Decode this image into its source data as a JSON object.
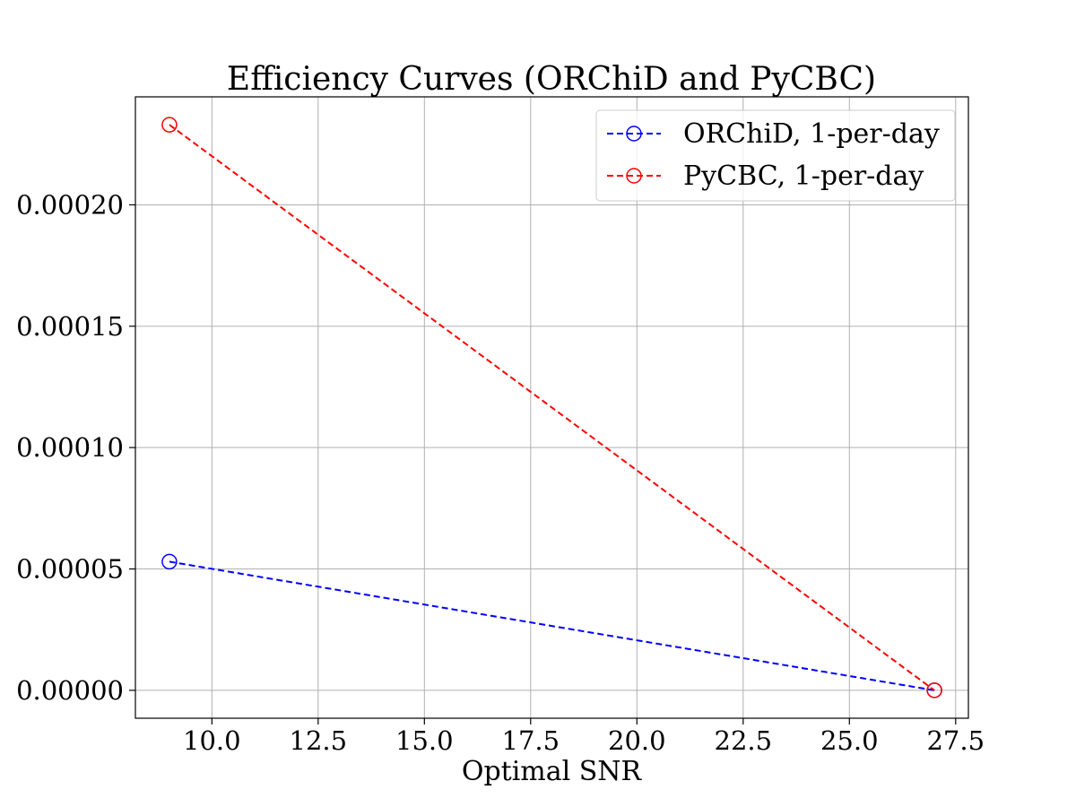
{
  "chart_data": {
    "type": "line",
    "title": "Efficiency Curves (ORChiD and PyCBC)",
    "xlabel": "Optimal SNR",
    "ylabel": "",
    "xlim": [
      8.2,
      27.8
    ],
    "ylim": [
      -1.15e-05,
      0.0002445
    ],
    "x_ticks": [
      10.0,
      12.5,
      15.0,
      17.5,
      20.0,
      22.5,
      25.0,
      27.5
    ],
    "x_tick_labels": [
      "10.0",
      "12.5",
      "15.0",
      "17.5",
      "20.0",
      "22.5",
      "25.0",
      "27.5"
    ],
    "y_ticks": [
      0,
      5e-05,
      0.0001,
      0.00015,
      0.0002
    ],
    "y_tick_labels": [
      "0.00000",
      "0.00005",
      "0.00010",
      "0.00015",
      "0.00020"
    ],
    "grid": true,
    "legend_position": "top-right",
    "series": [
      {
        "name": "ORChiD, 1-per-day",
        "color": "#0000ff",
        "line_style": "dashed",
        "marker": "open-circle",
        "x": [
          9.0,
          27.0
        ],
        "y": [
          5.3e-05,
          0.0
        ]
      },
      {
        "name": "PyCBC, 1-per-day",
        "color": "#ff0000",
        "line_style": "dashed",
        "marker": "open-circle",
        "x": [
          9.0,
          27.0
        ],
        "y": [
          0.000233,
          0.0
        ]
      }
    ]
  }
}
